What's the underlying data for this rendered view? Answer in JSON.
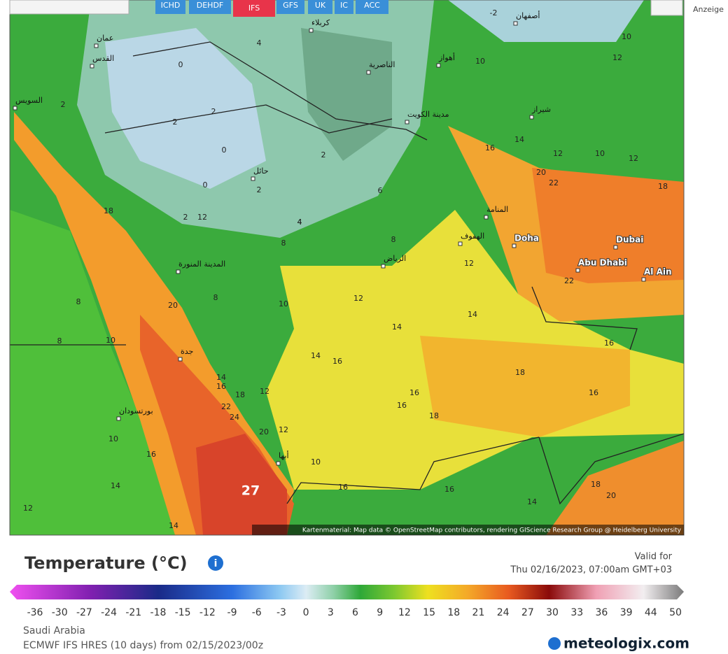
{
  "toolbar": {
    "buttons": [
      "ICHD",
      "DEHDF",
      "IFS",
      "GFS",
      "UK",
      "IC",
      "ACC"
    ],
    "active": "IFS"
  },
  "ad_label": "Anzeige",
  "map": {
    "cities": [
      "Doha",
      "Dubai",
      "Abu Dhabi",
      "Al Ain",
      "الرياض",
      "جدة",
      "المدينة المنورة",
      "حائل",
      "مدينة الكويت",
      "الناصرية",
      "كربلاء",
      "الهفوف",
      "أبها",
      "أصفهان",
      "شيراز",
      "عمان",
      "بورتسودان",
      "المنامة",
      "أهواز",
      "السويس",
      "القدس"
    ],
    "temperatures": [
      4,
      0,
      2,
      2,
      2,
      0,
      2,
      0,
      2,
      6,
      4,
      8,
      8,
      12,
      12,
      10,
      14,
      14,
      16,
      14,
      16,
      16,
      18,
      18,
      16,
      16,
      16,
      14,
      12,
      10,
      20,
      22,
      10,
      12,
      10,
      18,
      20,
      8,
      10,
      8,
      14,
      16,
      18,
      12,
      22,
      24,
      20,
      12,
      10,
      16,
      16,
      14,
      18,
      20,
      16,
      10,
      14,
      12,
      14,
      12,
      8,
      4,
      2,
      -2,
      22,
      18,
      12
    ],
    "max_label": 27,
    "attribution": "Kartenmaterial: Map data © OpenStreetMap contributors, rendering GIScience Research Group @ Heidelberg University"
  },
  "legend": {
    "title": "Temperature (°C)",
    "valid_label": "Valid for",
    "valid_time": "Thu 02/16/2023, 07:00am GMT+03",
    "ticks": [
      -36,
      -30,
      -27,
      -24,
      -21,
      -18,
      -15,
      -12,
      -9,
      -6,
      -3,
      0,
      3,
      6,
      9,
      12,
      15,
      18,
      21,
      24,
      27,
      30,
      33,
      36,
      39,
      44,
      50
    ]
  },
  "footer": {
    "region": "Saudi Arabia",
    "model": "ECMWF IFS HRES (10 days) from 02/15/2023/00z",
    "brand": "meteologix.com"
  }
}
